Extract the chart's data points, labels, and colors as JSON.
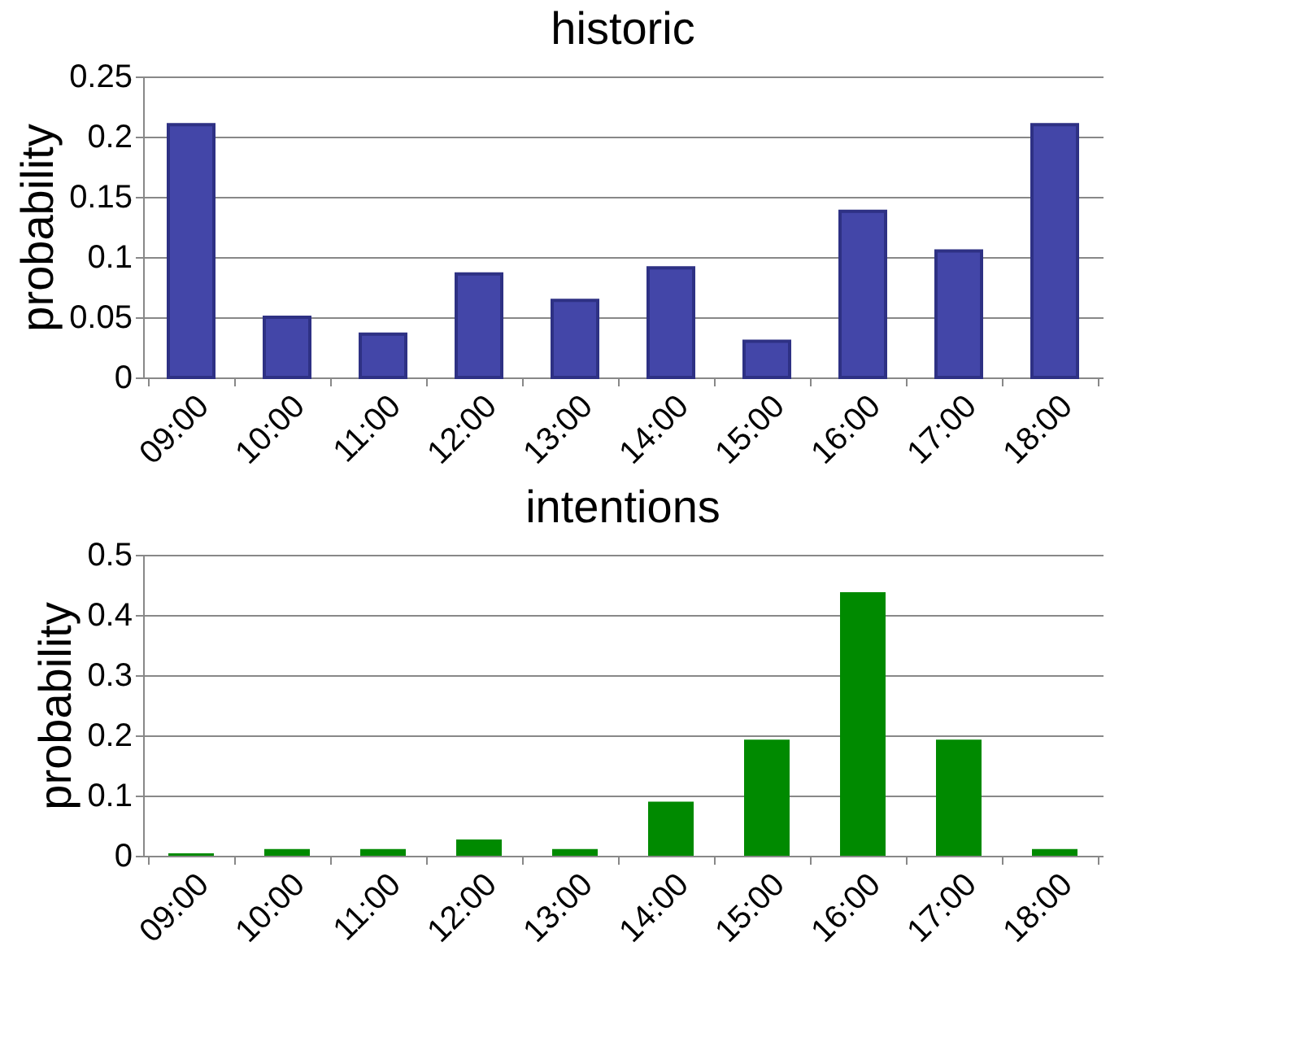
{
  "chart_data": [
    {
      "type": "bar",
      "title": "historic",
      "ylabel": "probability",
      "categories": [
        "09:00",
        "10:00",
        "11:00",
        "12:00",
        "13:00",
        "14:00",
        "15:00",
        "16:00",
        "17:00",
        "18:00"
      ],
      "values": [
        0.21,
        0.05,
        0.036,
        0.086,
        0.064,
        0.091,
        0.03,
        0.138,
        0.105,
        0.21
      ],
      "color": "#4346a8",
      "ylim": [
        0,
        0.25
      ],
      "yticks": [
        0,
        0.05,
        0.1,
        0.15,
        0.2,
        0.25
      ],
      "grid": "y"
    },
    {
      "type": "bar",
      "title": "intentions",
      "ylabel": "probability",
      "categories": [
        "09:00",
        "10:00",
        "11:00",
        "12:00",
        "13:00",
        "14:00",
        "15:00",
        "16:00",
        "17:00",
        "18:00"
      ],
      "values": [
        0.004,
        0.011,
        0.011,
        0.027,
        0.011,
        0.09,
        0.193,
        0.438,
        0.193,
        0.011
      ],
      "color": "#008a00",
      "ylim": [
        0,
        0.5
      ],
      "yticks": [
        0,
        0.1,
        0.2,
        0.3,
        0.4,
        0.5
      ],
      "grid": "y"
    }
  ]
}
